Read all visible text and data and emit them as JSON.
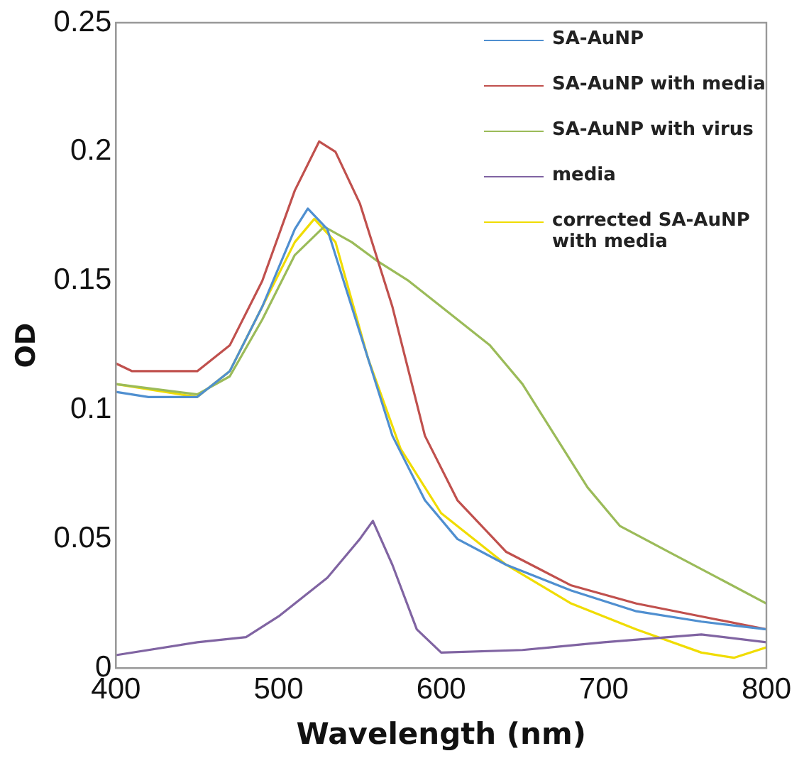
{
  "chart_data": {
    "type": "line",
    "xlabel": "Wavelength (nm)",
    "ylabel": "OD",
    "xlim": [
      400,
      800
    ],
    "xticks": [
      400,
      500,
      600,
      700,
      800
    ],
    "ylim": [
      0,
      0.25
    ],
    "yticks": [
      0,
      0.05,
      0.1,
      0.15,
      0.2,
      0.25
    ],
    "grid": false,
    "legend": "top right",
    "marker": "none",
    "series": [
      {
        "name": "SA-AuNP",
        "color": "#4f8fd0",
        "x": [
          400,
          420,
          450,
          470,
          490,
          510,
          518,
          530,
          550,
          570,
          590,
          610,
          640,
          680,
          720,
          760,
          800
        ],
        "values": [
          0.107,
          0.105,
          0.105,
          0.115,
          0.14,
          0.17,
          0.178,
          0.17,
          0.13,
          0.09,
          0.065,
          0.05,
          0.04,
          0.03,
          0.022,
          0.018,
          0.015
        ]
      },
      {
        "name": "SA-AuNP with media",
        "color": "#c0504d",
        "x": [
          400,
          410,
          450,
          470,
          490,
          510,
          525,
          535,
          550,
          570,
          590,
          610,
          640,
          680,
          720,
          760,
          800
        ],
        "values": [
          0.118,
          0.115,
          0.115,
          0.125,
          0.15,
          0.185,
          0.204,
          0.2,
          0.18,
          0.14,
          0.09,
          0.065,
          0.045,
          0.032,
          0.025,
          0.02,
          0.015
        ]
      },
      {
        "name": "SA-AuNP with virus",
        "color": "#9bbb59",
        "x": [
          400,
          450,
          470,
          490,
          510,
          528,
          545,
          560,
          580,
          600,
          630,
          650,
          670,
          690,
          710,
          740,
          770,
          800
        ],
        "values": [
          0.11,
          0.106,
          0.113,
          0.135,
          0.16,
          0.171,
          0.165,
          0.158,
          0.15,
          0.14,
          0.125,
          0.11,
          0.09,
          0.07,
          0.055,
          0.045,
          0.035,
          0.025
        ]
      },
      {
        "name": "media",
        "color": "#8064a2",
        "x": [
          400,
          450,
          480,
          500,
          530,
          550,
          558,
          570,
          585,
          600,
          650,
          700,
          760,
          800
        ],
        "values": [
          0.005,
          0.01,
          0.012,
          0.02,
          0.035,
          0.05,
          0.057,
          0.04,
          0.015,
          0.006,
          0.007,
          0.01,
          0.013,
          0.01
        ]
      },
      {
        "name": "corrected SA-AuNP with media",
        "color": "#f0dc00",
        "x": [
          400,
          450,
          470,
          490,
          510,
          522,
          535,
          555,
          575,
          600,
          640,
          680,
          720,
          760,
          780,
          800
        ],
        "values": [
          0.11,
          0.105,
          0.115,
          0.14,
          0.165,
          0.174,
          0.165,
          0.12,
          0.085,
          0.06,
          0.04,
          0.025,
          0.015,
          0.006,
          0.004,
          0.008
        ]
      }
    ]
  }
}
